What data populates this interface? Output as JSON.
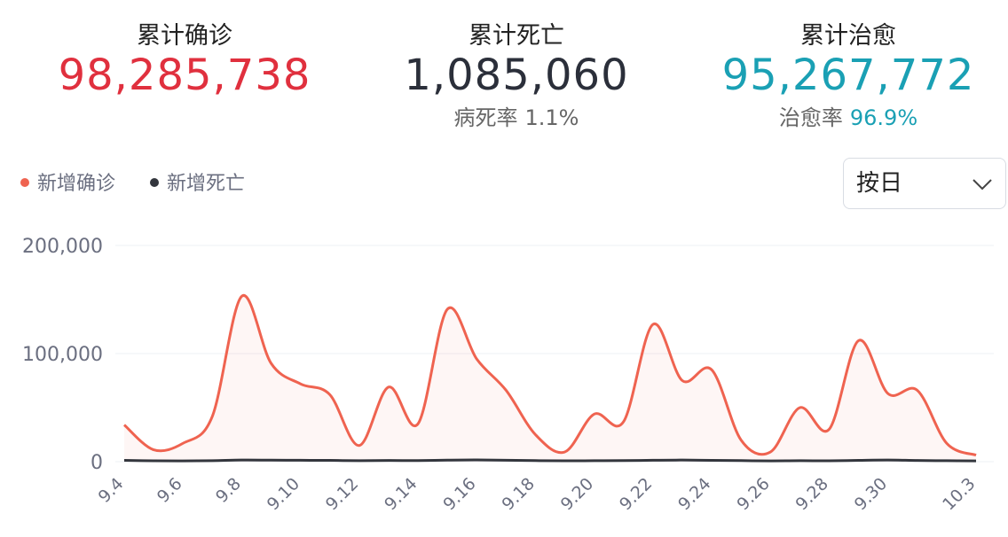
{
  "stats": [
    {
      "label": "累计确诊",
      "value": "98,285,738",
      "color": "#e0303e"
    },
    {
      "label": "累计死亡",
      "value": "1,085,060",
      "color": "#2b2f3a",
      "rate_label": "病死率",
      "rate": "1.1%"
    },
    {
      "label": "累计治愈",
      "value": "95,267,772",
      "color": "#1aa0b4",
      "rate_label": "治愈率",
      "rate": "96.9%"
    }
  ],
  "dropdown": "按日",
  "chart_data": {
    "type": "line",
    "categories": [
      "9.4",
      null,
      "9.6",
      null,
      "9.8",
      null,
      "9.10",
      null,
      "9.12",
      null,
      "9.14",
      null,
      "9.16",
      null,
      "9.18",
      null,
      "9.20",
      null,
      "9.22",
      null,
      "9.24",
      null,
      "9.26",
      null,
      "9.28",
      null,
      "9.30",
      null,
      null,
      "10.3"
    ],
    "series": [
      {
        "name": "新增确诊",
        "color": "#ef6350",
        "values": [
          34000,
          11000,
          17000,
          42000,
          153000,
          91000,
          72000,
          62000,
          15000,
          69000,
          35000,
          141000,
          95000,
          66000,
          25000,
          9000,
          44000,
          37000,
          127000,
          75000,
          85000,
          20000,
          9000,
          50000,
          30000,
          112000,
          63000,
          66000,
          17000,
          6000
        ]
      },
      {
        "name": "新增死亡",
        "color": "#33363d",
        "values": [
          1200,
          800,
          700,
          900,
          1500,
          1400,
          1300,
          1200,
          900,
          1100,
          1000,
          1400,
          1600,
          1300,
          1000,
          800,
          900,
          1000,
          1300,
          1500,
          1200,
          1000,
          700,
          900,
          800,
          1200,
          1500,
          1100,
          900,
          700
        ]
      }
    ],
    "ylim": [
      0,
      200000
    ],
    "yticks": [
      0,
      {
        "value": 100000,
        "label": "100,000"
      },
      {
        "value": 200000,
        "label": "200,000"
      }
    ],
    "grid": true
  }
}
